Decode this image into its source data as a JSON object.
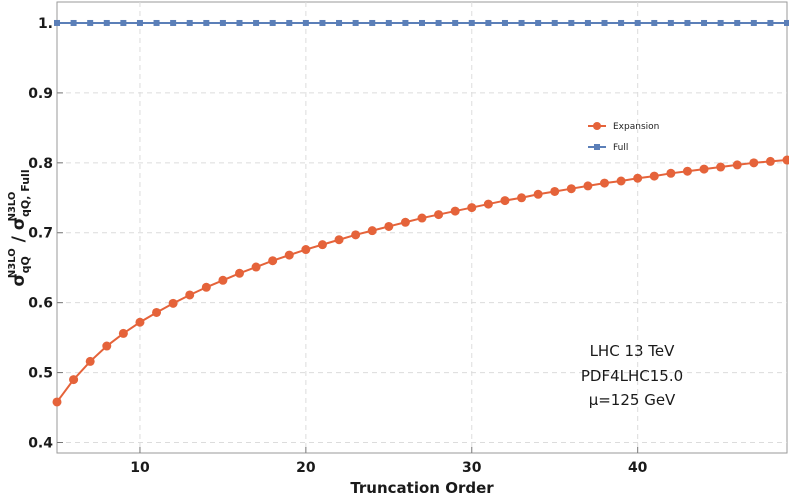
{
  "chart_data": {
    "type": "line",
    "xlabel": "Truncation Order",
    "ylabel": {
      "base": "σ",
      "num_sub": "qQ",
      "num_sup": "N3LO",
      "slash": " / ",
      "den_sub": "qQ, Full",
      "den_sup": "N3LO"
    },
    "xlim": [
      5,
      49
    ],
    "ylim": [
      0.385,
      1.03
    ],
    "x_ticks": [
      10,
      20,
      30,
      40
    ],
    "x_tick_labels": [
      "10",
      "20",
      "30",
      "40"
    ],
    "y_ticks": [
      0.4,
      0.5,
      0.6,
      0.7,
      0.8,
      0.9,
      1.0
    ],
    "y_tick_labels": [
      "0.4",
      "0.5",
      "0.6",
      "0.7",
      "0.8",
      "0.9",
      "1."
    ],
    "grid": true,
    "legend_position": "right",
    "series": [
      {
        "name": "Expansion",
        "color": "#e5633a",
        "marker": "circle",
        "x": [
          5,
          6,
          7,
          8,
          9,
          10,
          11,
          12,
          13,
          14,
          15,
          16,
          17,
          18,
          19,
          20,
          21,
          22,
          23,
          24,
          25,
          26,
          27,
          28,
          29,
          30,
          31,
          32,
          33,
          34,
          35,
          36,
          37,
          38,
          39,
          40,
          41,
          42,
          43,
          44,
          45,
          46,
          47,
          48,
          49
        ],
        "y": [
          0.458,
          0.49,
          0.516,
          0.538,
          0.556,
          0.572,
          0.586,
          0.599,
          0.611,
          0.622,
          0.632,
          0.642,
          0.651,
          0.66,
          0.668,
          0.676,
          0.683,
          0.69,
          0.697,
          0.703,
          0.709,
          0.715,
          0.721,
          0.726,
          0.731,
          0.736,
          0.741,
          0.746,
          0.75,
          0.755,
          0.759,
          0.763,
          0.767,
          0.771,
          0.774,
          0.778,
          0.781,
          0.785,
          0.788,
          0.791,
          0.794,
          0.797,
          0.8,
          0.802,
          0.804
        ]
      },
      {
        "name": "Full",
        "color": "#5b7fb8",
        "marker": "square",
        "x": [
          5,
          6,
          7,
          8,
          9,
          10,
          11,
          12,
          13,
          14,
          15,
          16,
          17,
          18,
          19,
          20,
          21,
          22,
          23,
          24,
          25,
          26,
          27,
          28,
          29,
          30,
          31,
          32,
          33,
          34,
          35,
          36,
          37,
          38,
          39,
          40,
          41,
          42,
          43,
          44,
          45,
          46,
          47,
          48,
          49
        ],
        "y": [
          1,
          1,
          1,
          1,
          1,
          1,
          1,
          1,
          1,
          1,
          1,
          1,
          1,
          1,
          1,
          1,
          1,
          1,
          1,
          1,
          1,
          1,
          1,
          1,
          1,
          1,
          1,
          1,
          1,
          1,
          1,
          1,
          1,
          1,
          1,
          1,
          1,
          1,
          1,
          1,
          1,
          1,
          1,
          1,
          1
        ]
      }
    ],
    "annotations": [
      "LHC 13 TeV",
      "PDF4LHC15.0",
      "μ=125 GeV"
    ]
  }
}
